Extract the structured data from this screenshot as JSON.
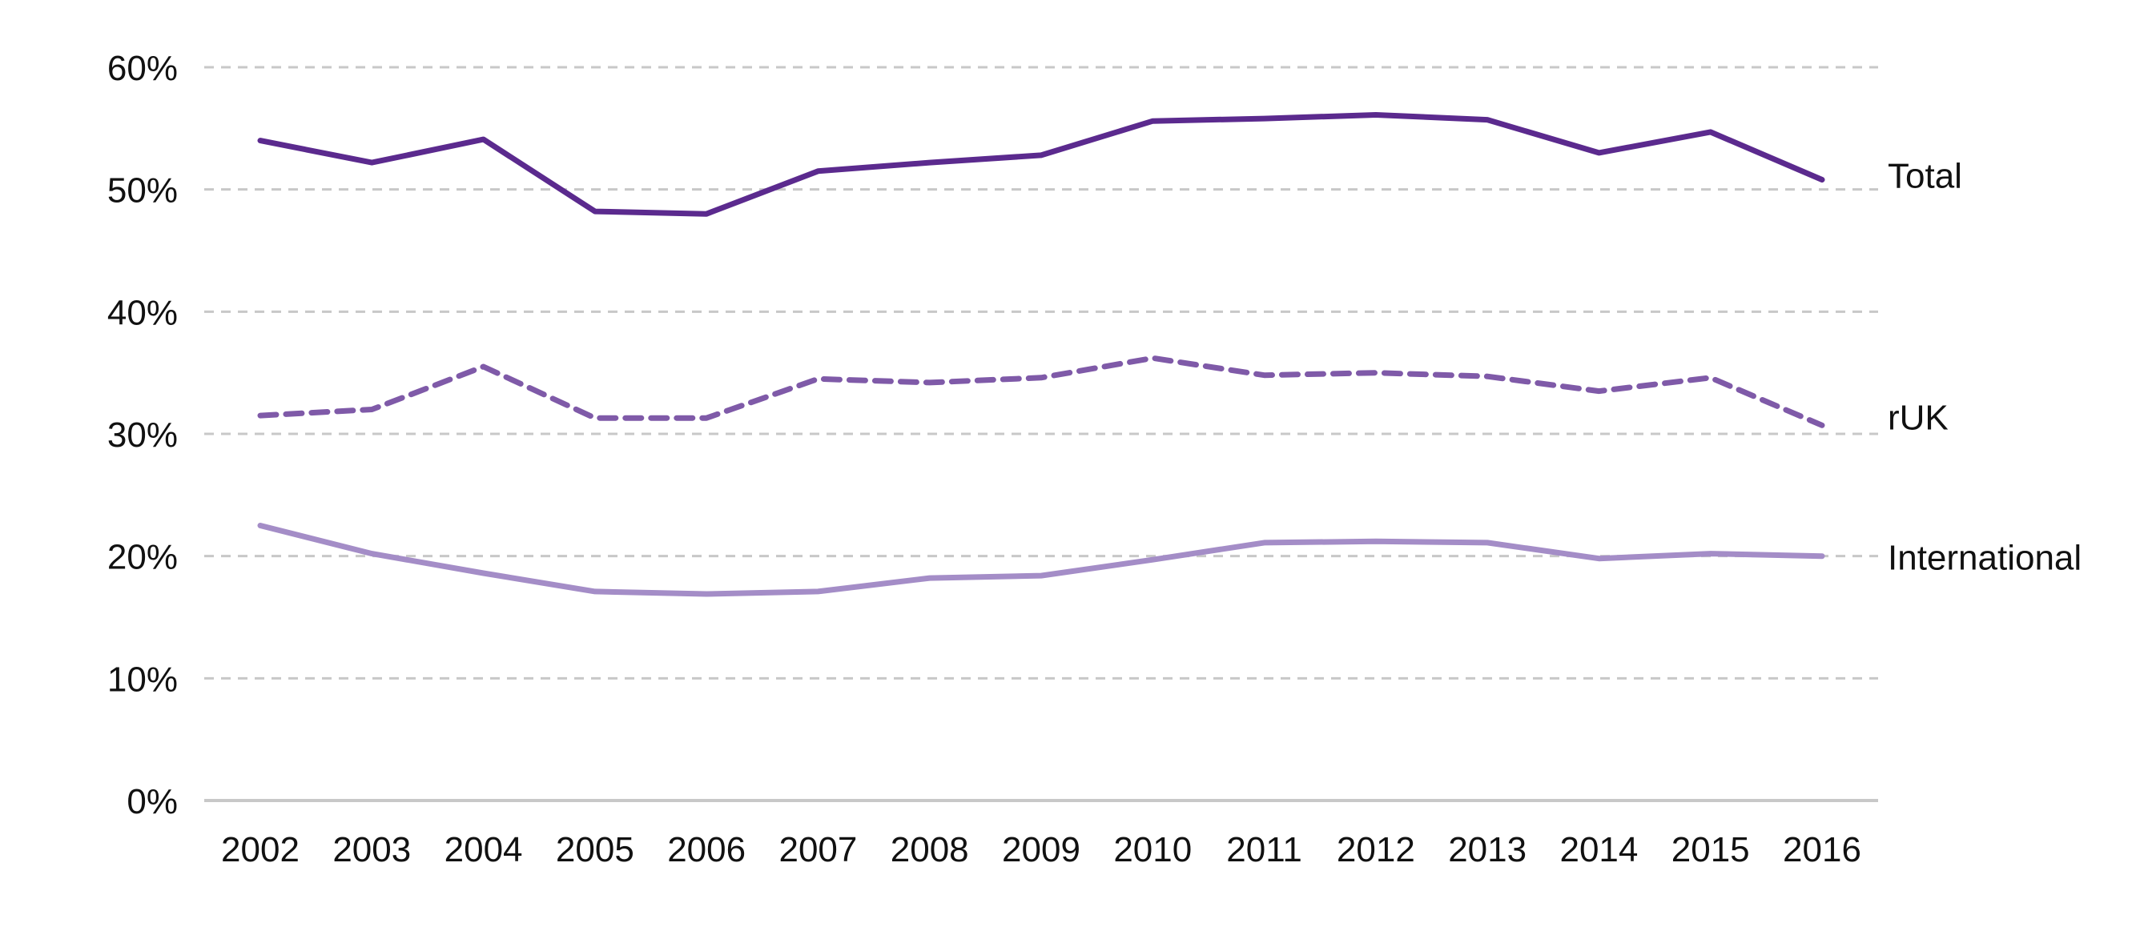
{
  "chart_data": {
    "type": "line",
    "title": "",
    "xlabel": "",
    "ylabel": "",
    "categories": [
      "2002",
      "2003",
      "2004",
      "2005",
      "2006",
      "2007",
      "2008",
      "2009",
      "2010",
      "2011",
      "2012",
      "2013",
      "2014",
      "2015",
      "2016"
    ],
    "ylim": [
      0,
      60
    ],
    "yticks": [
      0,
      10,
      20,
      30,
      40,
      50,
      60
    ],
    "ytick_labels": [
      "0%",
      "10%",
      "20%",
      "30%",
      "40%",
      "50%",
      "60%"
    ],
    "grid": true,
    "legend": "none (series labelled at right end of lines)",
    "series": [
      {
        "name": "Total",
        "color": "#5b2a8e",
        "dash": "solid",
        "values": [
          54.0,
          52.2,
          54.1,
          48.2,
          48.0,
          51.5,
          52.2,
          52.8,
          55.6,
          55.8,
          56.1,
          55.7,
          53.0,
          54.7,
          50.8
        ]
      },
      {
        "name": "rUK",
        "color": "#7f5aa8",
        "dash": "dashed",
        "values": [
          31.5,
          32.0,
          35.5,
          31.3,
          31.3,
          34.5,
          34.2,
          34.6,
          36.2,
          34.8,
          35.0,
          34.7,
          33.5,
          34.6,
          30.7
        ]
      },
      {
        "name": "International",
        "color": "#a48dc7",
        "dash": "solid",
        "values": [
          22.5,
          20.2,
          18.6,
          17.1,
          16.9,
          17.1,
          18.2,
          18.4,
          19.7,
          21.1,
          21.2,
          21.1,
          19.8,
          20.2,
          20.0
        ]
      }
    ]
  }
}
